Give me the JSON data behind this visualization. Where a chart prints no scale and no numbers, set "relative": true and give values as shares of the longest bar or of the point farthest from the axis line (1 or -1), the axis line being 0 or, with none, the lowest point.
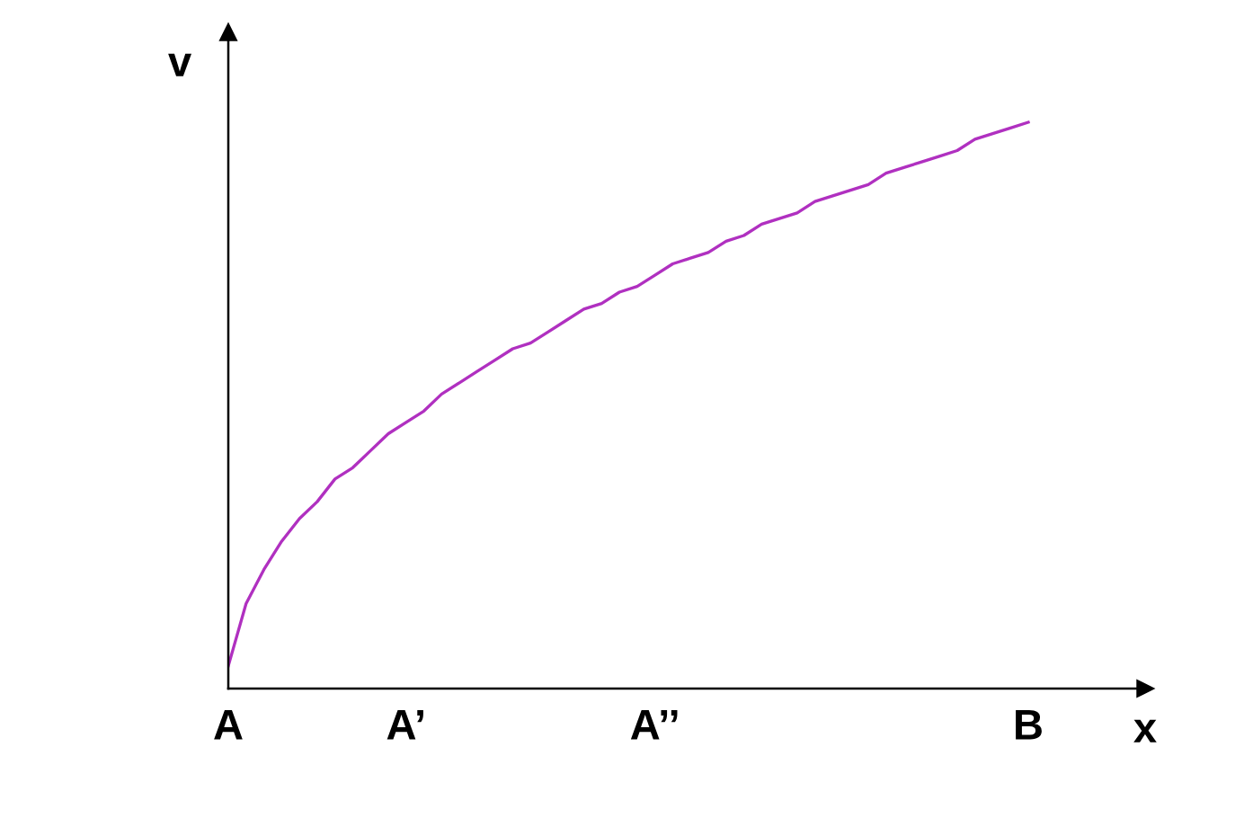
{
  "chart_data": {
    "type": "line",
    "relative": true,
    "xlabel": "x",
    "ylabel": "v",
    "grid": false,
    "legend": false,
    "marker": "none",
    "line_style": "solid",
    "categories": [
      "A",
      null,
      null,
      null,
      null,
      null,
      null,
      null,
      null,
      null,
      "A’",
      null,
      null,
      null,
      null,
      null,
      null,
      null,
      null,
      null,
      null,
      null,
      null,
      null,
      "A’’",
      null,
      null,
      null,
      null,
      null,
      null,
      null,
      null,
      null,
      null,
      null,
      null,
      null,
      null,
      null,
      null,
      null,
      null,
      null,
      null,
      "B"
    ],
    "series": [
      {
        "color": "#b030c0",
        "values": [
          0.04,
          0.15,
          0.21,
          0.26,
          0.3,
          0.33,
          0.37,
          0.39,
          0.42,
          0.45,
          0.47,
          0.49,
          0.52,
          0.54,
          0.56,
          0.58,
          0.6,
          0.61,
          0.63,
          0.65,
          0.67,
          0.68,
          0.7,
          0.71,
          0.73,
          0.75,
          0.76,
          0.77,
          0.79,
          0.8,
          0.82,
          0.83,
          0.84,
          0.86,
          0.87,
          0.88,
          0.89,
          0.91,
          0.92,
          0.93,
          0.94,
          0.95,
          0.97,
          0.98,
          0.99,
          1.0
        ]
      }
    ]
  }
}
